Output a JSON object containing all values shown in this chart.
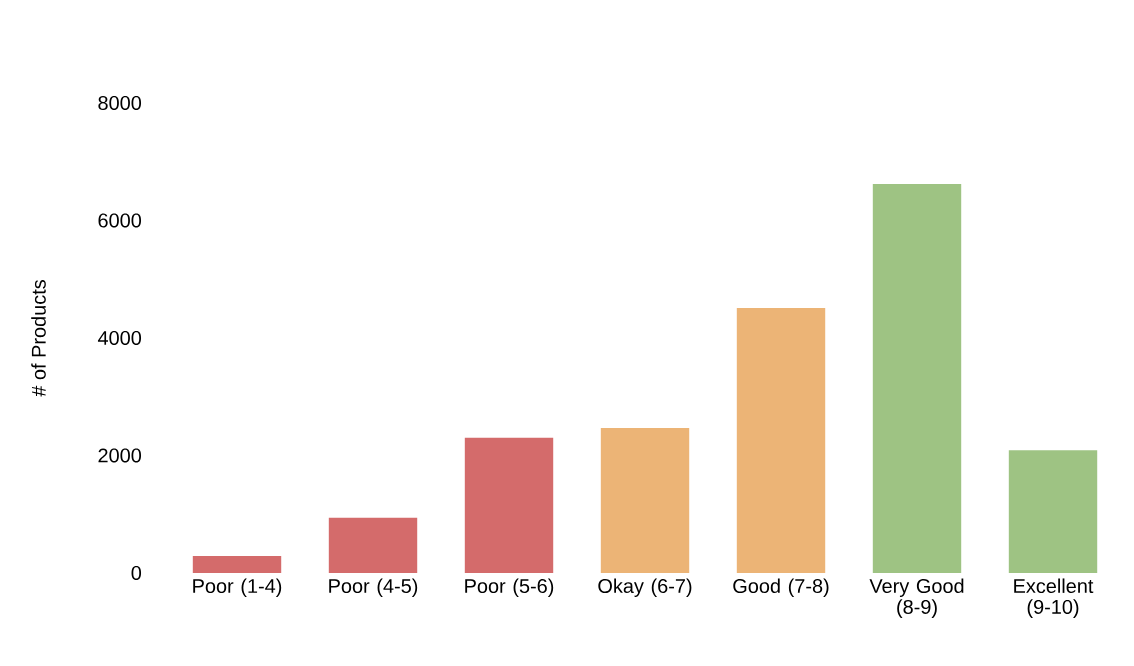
{
  "chart_data": {
    "type": "bar",
    "ylabel": "# of Products",
    "categories": [
      "Poor (1-4)",
      "Poor (4-5)",
      "Poor (5-6)",
      "Okay (6-7)",
      "Good (7-8)",
      "Very Good (8-9)",
      "Excellent (9-10)"
    ],
    "values": [
      290,
      940,
      2300,
      2470,
      4510,
      6620,
      2090
    ],
    "colors": [
      "#d46b6b",
      "#d46b6b",
      "#d46b6b",
      "#ecb476",
      "#ecb476",
      "#9ec383",
      "#9ec383"
    ],
    "ylim": [
      0,
      8000
    ],
    "yticks": [
      0,
      2000,
      4000,
      6000,
      8000
    ],
    "grid": false
  }
}
